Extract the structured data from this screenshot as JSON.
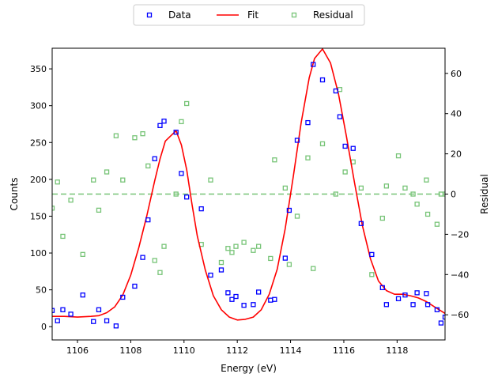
{
  "chart_data": {
    "type": "scatter",
    "xlabel": "Energy (eV)",
    "ylabel": "Counts",
    "y2label": "Residual",
    "xlim": [
      1105.05,
      1119.8
    ],
    "ylim": [
      -18,
      378
    ],
    "y2lim": [
      -72.5,
      72.5
    ],
    "xticks": [
      1106,
      1108,
      1110,
      1112,
      1114,
      1116,
      1118
    ],
    "yticks": [
      0,
      50,
      100,
      150,
      200,
      250,
      300,
      350
    ],
    "y2ticks": [
      -60,
      -40,
      -20,
      0,
      20,
      40,
      60
    ],
    "grid": false,
    "legend_position": "top-center",
    "legend": [
      "Data",
      "Fit",
      "Residual"
    ],
    "reference_line": {
      "axis": "y2",
      "value": 0,
      "style": "dashed",
      "color": "#77c477"
    },
    "series": [
      {
        "name": "Data",
        "type": "scatter",
        "marker": "square-open",
        "color": "#0000ff",
        "x": [
          1105.05,
          1105.25,
          1105.45,
          1105.75,
          1106.2,
          1106.6,
          1106.8,
          1107.1,
          1107.45,
          1107.7,
          1108.15,
          1108.45,
          1108.65,
          1108.9,
          1109.1,
          1109.25,
          1109.7,
          1109.9,
          1110.1,
          1110.65,
          1111.0,
          1111.4,
          1111.65,
          1111.8,
          1111.95,
          1112.25,
          1112.6,
          1112.8,
          1113.25,
          1113.4,
          1113.8,
          1113.95,
          1114.25,
          1114.65,
          1114.85,
          1115.2,
          1115.7,
          1115.85,
          1116.05,
          1116.35,
          1116.65,
          1117.05,
          1117.45,
          1117.6,
          1118.05,
          1118.3,
          1118.6,
          1118.75,
          1119.1,
          1119.15,
          1119.5,
          1119.65,
          1119.8
        ],
        "y": [
          22,
          8,
          23,
          17,
          43,
          7,
          23,
          8,
          1,
          40,
          55,
          94,
          145,
          228,
          273,
          279,
          264,
          208,
          176,
          160,
          70,
          77,
          46,
          37,
          41,
          29,
          30,
          47,
          36,
          37,
          93,
          158,
          253,
          277,
          356,
          335,
          320,
          285,
          245,
          242,
          140,
          98,
          53,
          30,
          38,
          43,
          30,
          46,
          45,
          30,
          23,
          5,
          13
        ]
      },
      {
        "name": "Fit",
        "type": "line",
        "color": "#ff0000",
        "x": [
          1105.05,
          1105.5,
          1106.0,
          1106.5,
          1106.8,
          1107.1,
          1107.4,
          1107.7,
          1108.0,
          1108.3,
          1108.6,
          1108.9,
          1109.1,
          1109.3,
          1109.5,
          1109.7,
          1109.9,
          1110.1,
          1110.3,
          1110.5,
          1110.8,
          1111.1,
          1111.4,
          1111.7,
          1112.0,
          1112.3,
          1112.6,
          1112.9,
          1113.2,
          1113.5,
          1113.8,
          1114.1,
          1114.4,
          1114.7,
          1114.9,
          1115.2,
          1115.5,
          1115.8,
          1116.1,
          1116.4,
          1116.7,
          1117.0,
          1117.3,
          1117.6,
          1117.9,
          1118.2,
          1118.5,
          1118.8,
          1119.1,
          1119.4,
          1119.8
        ],
        "y": [
          14,
          14,
          13,
          14,
          15,
          19,
          27,
          43,
          70,
          107,
          150,
          198,
          228,
          252,
          259,
          266,
          247,
          213,
          166,
          123,
          77,
          42,
          23,
          13,
          9,
          10,
          13,
          23,
          44,
          78,
          133,
          203,
          277,
          338,
          364,
          377,
          358,
          316,
          258,
          196,
          137,
          92,
          62,
          49,
          44,
          44,
          42,
          39,
          34,
          27,
          18
        ]
      },
      {
        "name": "Residual",
        "type": "scatter",
        "axis": "y2",
        "marker": "square-open",
        "color": "#77c477",
        "x": [
          1105.05,
          1105.25,
          1105.45,
          1105.75,
          1106.2,
          1106.6,
          1106.8,
          1107.1,
          1107.45,
          1107.7,
          1108.15,
          1108.45,
          1108.65,
          1108.9,
          1109.1,
          1109.25,
          1109.7,
          1109.9,
          1110.1,
          1110.65,
          1111.0,
          1111.4,
          1111.65,
          1111.8,
          1111.95,
          1112.25,
          1112.6,
          1112.8,
          1113.25,
          1113.4,
          1113.8,
          1113.95,
          1114.25,
          1114.65,
          1114.85,
          1115.2,
          1115.7,
          1115.85,
          1116.05,
          1116.35,
          1116.65,
          1117.05,
          1117.45,
          1117.6,
          1118.05,
          1118.3,
          1118.6,
          1118.75,
          1119.1,
          1119.15,
          1119.5,
          1119.65,
          1119.8
        ],
        "y": [
          -7,
          6,
          -21,
          -3,
          -30,
          7,
          -8,
          11,
          29,
          7,
          28,
          30,
          14,
          -33,
          -39,
          -26,
          0,
          36,
          45,
          -25,
          7,
          -34,
          -27,
          -29,
          -26,
          -24,
          -28,
          -26,
          -32,
          17,
          3,
          -35,
          -11,
          18,
          -37,
          25,
          0,
          52,
          11,
          16,
          3,
          -40,
          -12,
          4,
          19,
          3,
          0,
          -5,
          7,
          -10,
          -15,
          0,
          0
        ]
      }
    ]
  }
}
